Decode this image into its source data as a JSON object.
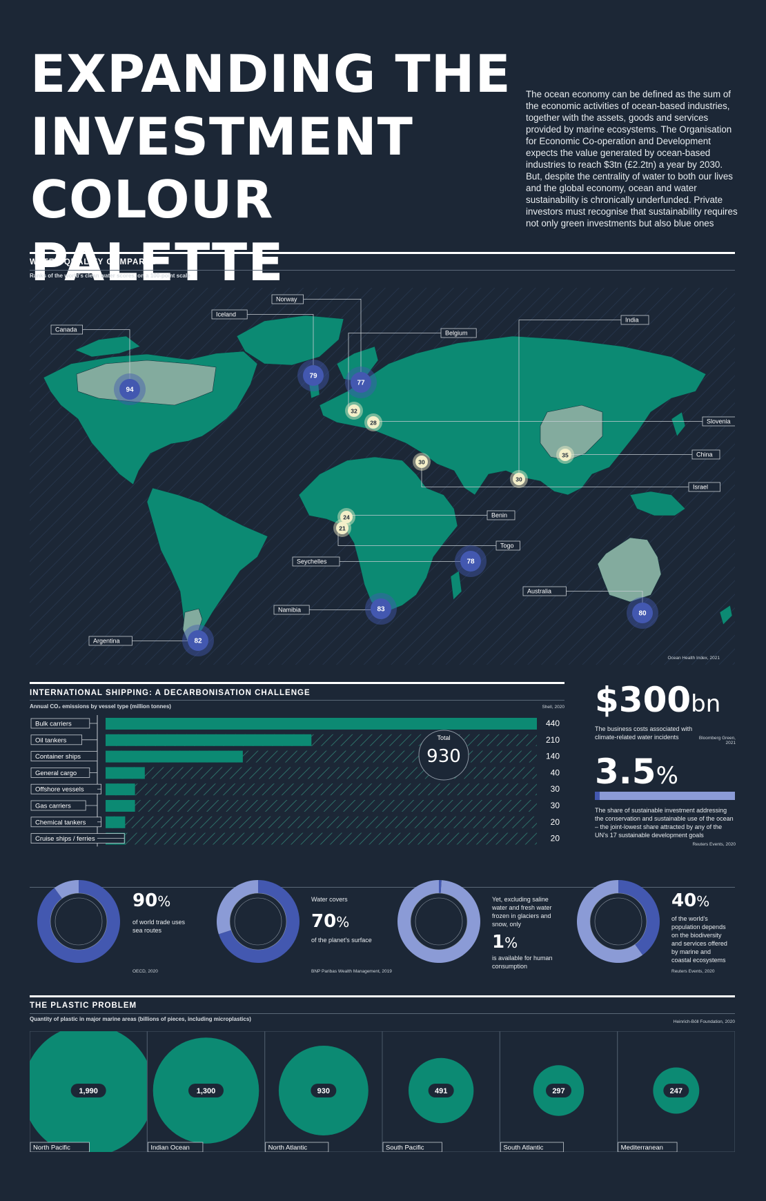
{
  "header": {
    "title_lines": [
      "EXPANDING THE",
      "INVESTMENT",
      "COLOUR PALETTE"
    ],
    "intro": "The ocean economy can be defined as the sum of the economic activities of ocean-based industries, together with the assets, goods and services provided by marine ecosystems. The Organisation for Economic Co-operation and Development expects the value generated by ocean-based industries to reach $3tn (£2.2tn) a year by 2030. But, despite the centrality of water to both our lives and the global economy, ocean and water sustainability is chronically underfunded. Private investors must recognise that sustainability requires not only green investments but also blue ones"
  },
  "water": {
    "title": "WATER QUALITY COMPARED",
    "subtitle": "Ranks of the world's clean water scores, on a 100-point scale",
    "source": "Ocean Health Index, 2021"
  },
  "shipping": {
    "title": "INTERNATIONAL SHIPPING: A DECARBONISATION CHALLENGE",
    "subtitle": "Annual CO₂ emissions by vessel type (million tonnes)",
    "source": "Shell, 2020",
    "total_label": "Total",
    "total_value": "930"
  },
  "stats": {
    "s1_value": "$300",
    "s1_unit": "bn",
    "s1_text": "The business costs associated with climate-related water incidents",
    "s1_source": "Bloomberg Green, 2021",
    "s2_value": "3.5",
    "s2_unit": "%",
    "s2_fraction": 0.035,
    "s2_text": "The share of sustainable investment addressing the conservation and sustainable use of the ocean – the joint-lowest share attracted by any of the UN's 17 sustainable development goals",
    "s2_source": "Reuters Events, 2020"
  },
  "donuts": [
    {
      "value": "90",
      "unit": "%",
      "pre": "",
      "text": "of world trade uses sea routes",
      "source": "OECD, 2020",
      "fraction": 0.9
    },
    {
      "value": "70",
      "unit": "%",
      "pre": "Water covers",
      "text": "of the planet's surface",
      "source": "BNP Paribas Wealth Management, 2019",
      "fraction": 0.7
    },
    {
      "value": "1",
      "unit": "%",
      "pre": "Yet, excluding saline water and fresh water frozen in glaciers and snow, only",
      "text": "is available for human consumption",
      "source": "",
      "fraction": 0.01
    },
    {
      "value": "40",
      "unit": "%",
      "pre": "",
      "text": "of the world's population depends on the biodiversity and services offered by marine and coastal ecosystems",
      "source": "Reuters Events, 2020",
      "fraction": 0.4
    }
  ],
  "plastic": {
    "title": "THE PLASTIC PROBLEM",
    "subtitle": "Quantity of plastic in major marine areas (billions of pieces, including microplastics)",
    "source": "Heinrich-Böll Foundation, 2020"
  },
  "colors": {
    "teal": "#0c8a73",
    "blue": "#4358b0",
    "lightblue": "#8b9bd6",
    "bg": "#1c2736",
    "cream": "#f3efc9"
  },
  "chart_data": [
    {
      "type": "scatter",
      "title": "WATER QUALITY COMPARED",
      "points": [
        {
          "country": "Canada",
          "value": 94,
          "label": "94"
        },
        {
          "country": "Iceland",
          "value": 79,
          "label": "79"
        },
        {
          "country": "Norway",
          "value": 77,
          "label": "77"
        },
        {
          "country": "Belgium",
          "value": 32,
          "label": "32"
        },
        {
          "country": "Slovenia",
          "value": 28,
          "label": "28"
        },
        {
          "country": "Israel",
          "value": 30,
          "label": "30"
        },
        {
          "country": "India",
          "value": 30,
          "label": "30"
        },
        {
          "country": "China",
          "value": 35,
          "label": "35"
        },
        {
          "country": "Benin",
          "value": 24,
          "label": "24"
        },
        {
          "country": "Togo",
          "value": 21,
          "label": "21"
        },
        {
          "country": "Seychelles",
          "value": 78,
          "label": "78"
        },
        {
          "country": "Namibia",
          "value": 83,
          "label": "83"
        },
        {
          "country": "Australia",
          "value": 80,
          "label": "80"
        },
        {
          "country": "Argentina",
          "value": 82,
          "label": "82"
        }
      ]
    },
    {
      "type": "bar",
      "title": "INTERNATIONAL SHIPPING: A DECARBONISATION CHALLENGE",
      "categories": [
        "Bulk carriers",
        "Oil tankers",
        "Container ships",
        "General cargo",
        "Offshore vessels",
        "Gas carriers",
        "Chemical tankers",
        "Cruise ships / ferries"
      ],
      "values": [
        440,
        210,
        140,
        40,
        30,
        30,
        20,
        20
      ],
      "xlim": [
        0,
        440
      ]
    },
    {
      "type": "bar",
      "title": "THE PLASTIC PROBLEM",
      "categories": [
        "North Pacific",
        "Indian Ocean",
        "North Atlantic",
        "South Pacific",
        "South Atlantic",
        "Mediterranean"
      ],
      "values": [
        1990,
        1300,
        930,
        491,
        297,
        247
      ],
      "labels": [
        "1,990",
        "1,300",
        "930",
        "491",
        "297",
        "247"
      ]
    }
  ]
}
